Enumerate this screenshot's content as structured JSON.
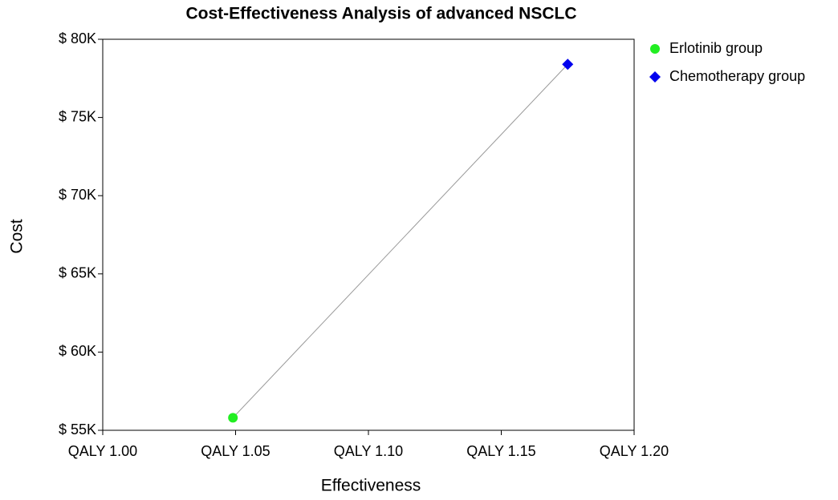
{
  "chart_data": {
    "type": "scatter",
    "title": "Cost-Effectiveness Analysis of advanced NSCLC",
    "x_label": "Effectiveness",
    "y_label": "Cost",
    "series": [
      {
        "name": "Erlotinib group",
        "color": "#22ee22",
        "marker": "circle",
        "x": [
          1.049
        ],
        "values": [
          55800
        ]
      },
      {
        "name": "Chemotherapy group",
        "color": "#0000ee",
        "marker": "diamond",
        "x": [
          1.175
        ],
        "values": [
          78400
        ]
      }
    ],
    "xlim": [
      1.0,
      1.2
    ],
    "xticks": [
      {
        "value": 1.0,
        "label": "QALY 1.00"
      },
      {
        "value": 1.05,
        "label": "QALY 1.05"
      },
      {
        "value": 1.1,
        "label": "QALY 1.10"
      },
      {
        "value": 1.15,
        "label": "QALY 1.15"
      },
      {
        "value": 1.2,
        "label": "QALY 1.20"
      }
    ],
    "ylim": [
      55000,
      80000
    ],
    "yticks": [
      {
        "value": 55000,
        "label": "$ 55K"
      },
      {
        "value": 60000,
        "label": "$ 60K"
      },
      {
        "value": 65000,
        "label": "$ 65K"
      },
      {
        "value": 70000,
        "label": "$ 70K"
      },
      {
        "value": 75000,
        "label": "$ 75K"
      },
      {
        "value": 80000,
        "label": "$ 80K"
      }
    ],
    "legend": "right"
  }
}
